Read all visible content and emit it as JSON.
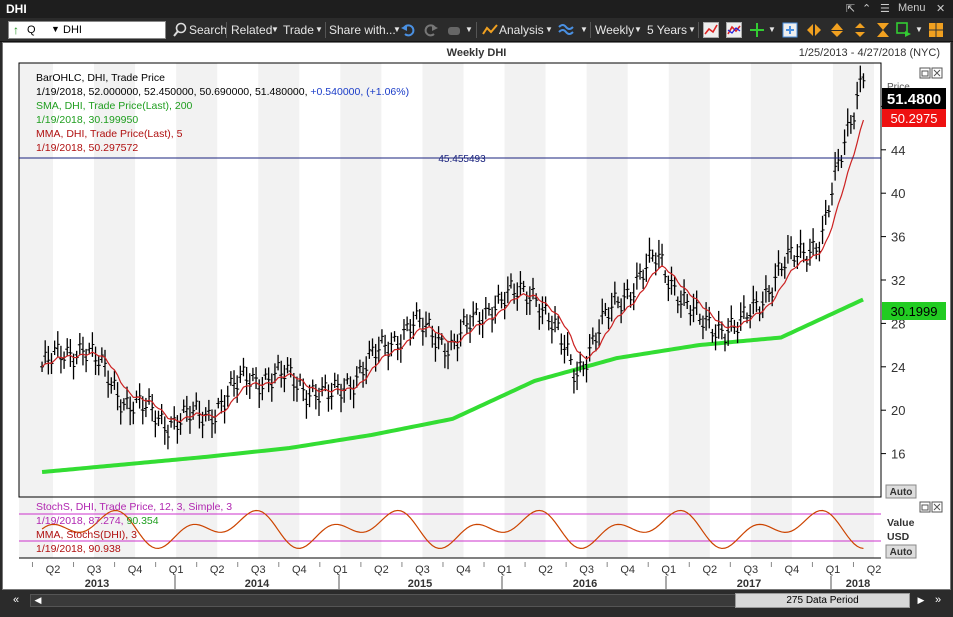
{
  "window": {
    "title": "DHI",
    "menu_label": "Menu"
  },
  "toolbar": {
    "symbol_prefix": "Q",
    "symbol_value": "DHI",
    "search_label": "Search",
    "related_label": "Related",
    "trade_label": "Trade",
    "share_label": "Share with...",
    "analysis_label": "Analysis",
    "period_label": "Weekly",
    "range_label": "5 Years"
  },
  "chart": {
    "title": "Weekly DHI",
    "date_range": "1/25/2013 - 4/27/2018 (NYC)",
    "legend": {
      "l1": "BarOHLC, DHI, Trade Price",
      "l2_values": "1/19/2018, 52.000000, 52.450000, 50.690000, 51.480000, ",
      "l2_change": "+0.540000, (+1.06%)",
      "l3": "SMA, DHI, Trade Price(Last),  200",
      "l4": "1/19/2018, 30.199950",
      "l5": "MMA, DHI, Trade Price(Last),  5",
      "l6": "1/19/2018, 50.297572"
    },
    "hline_label": "45.455493",
    "axis_title": "Price",
    "last_price": "51.4800",
    "mma_price": "50.2975",
    "sma_price": "30.1999",
    "auto_label": "Auto",
    "lower_legend": {
      "l1": "StochS, DHI, Trade Price,  12, 3, Simple, 3",
      "l2a": "1/19/2018, 87.274, ",
      "l2b": "90.354",
      "l3": "MMA, StochS(DHI),  3",
      "l4": "1/19/2018, 90.938"
    },
    "lower_axis_title": "Value",
    "lower_axis_unit": "USD",
    "lower_auto_label": "Auto",
    "quarter_labels": [
      "Q2",
      "Q3",
      "Q4",
      "Q1",
      "Q2",
      "Q3",
      "Q4",
      "Q1",
      "Q2",
      "Q3",
      "Q4",
      "Q1",
      "Q2",
      "Q3",
      "Q4",
      "Q1",
      "Q2",
      "Q3",
      "Q4",
      "Q1",
      "Q2"
    ],
    "year_labels": [
      "2013",
      "2014",
      "2015",
      "2016",
      "2017",
      "2018"
    ],
    "data_period": "275 Data Period",
    "colors": {
      "bars": "#000000",
      "sma": "#33dd33",
      "mma": "#cc2222",
      "hline": "#1a237e",
      "stoch": "#cc4400",
      "stoch_band": "#cc33cc",
      "sma_label_bg": "#22cc22",
      "mma_label_bg": "#ee1111"
    }
  },
  "chart_data": {
    "type": "line",
    "title": "Weekly DHI",
    "xlabel": "",
    "ylabel": "Price",
    "ylim": [
      12,
      52
    ],
    "y_ticks": [
      16,
      20,
      24,
      28,
      32,
      36,
      40,
      44,
      48
    ],
    "x_range": [
      "1/25/2013",
      "4/27/2018"
    ],
    "series": [
      {
        "name": "BarOHLC, DHI, Trade Price",
        "x": [
          "2013-01",
          "2013-04",
          "2013-07",
          "2013-10",
          "2014-01",
          "2014-04",
          "2014-07",
          "2014-10",
          "2015-01",
          "2015-04",
          "2015-07",
          "2015-10",
          "2016-01",
          "2016-04",
          "2016-07",
          "2016-10",
          "2017-01",
          "2017-04",
          "2017-07",
          "2017-10",
          "2018-01"
        ],
        "values": [
          24,
          26,
          21,
          19,
          19.5,
          23,
          23,
          21,
          24.5,
          28,
          26,
          30,
          31,
          23.5,
          30,
          34,
          28,
          27.5,
          33,
          36,
          51.5
        ]
      },
      {
        "name": "SMA, DHI, Trade Price(Last),  200",
        "x": [
          "2013-01",
          "2013-07",
          "2014-01",
          "2014-07",
          "2015-01",
          "2015-07",
          "2016-01",
          "2016-07",
          "2017-01",
          "2017-07",
          "2018-01"
        ],
        "values": [
          14.3,
          15.0,
          15.7,
          16.5,
          17.7,
          19.2,
          22.7,
          24.8,
          26.0,
          26.7,
          30.2
        ]
      },
      {
        "name": "MMA, DHI, Trade Price(Last),  5",
        "x": [
          "2013-01",
          "2013-07",
          "2014-01",
          "2014-07",
          "2015-01",
          "2015-07",
          "2016-01",
          "2016-07",
          "2017-01",
          "2017-07",
          "2018-01"
        ],
        "values": [
          23.5,
          21.0,
          19.5,
          23.0,
          22.0,
          27.0,
          30.0,
          30.5,
          27.5,
          33.0,
          50.3
        ]
      }
    ],
    "annotations": [
      {
        "label": "45.455493",
        "y": 45.455493
      }
    ],
    "lower_panel": {
      "type": "line",
      "series": [
        {
          "name": "StochS, DHI, Trade Price,  12, 3, Simple, 3",
          "last": 87.274
        },
        {
          "name": "MMA, StochS(DHI),  3",
          "last": 90.938
        }
      ]
    }
  }
}
